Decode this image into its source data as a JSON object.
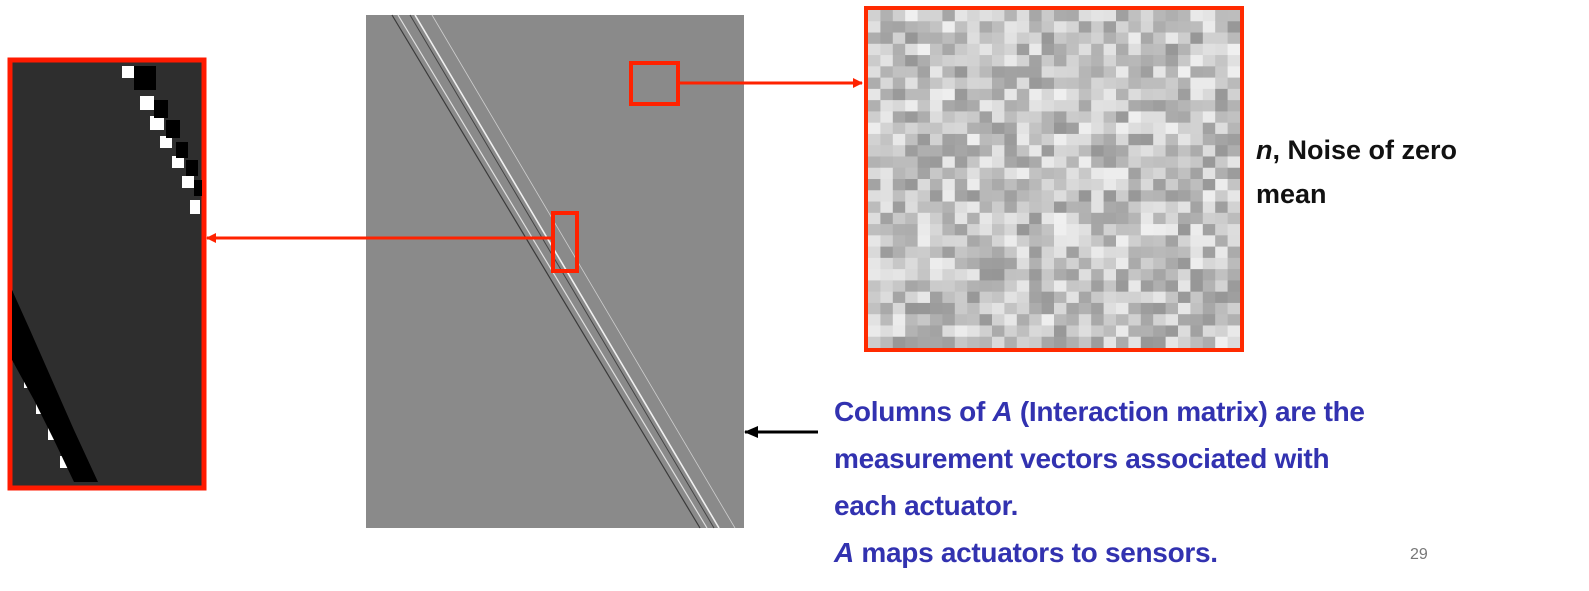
{
  "noise_label": [
    "n",
    ", Noise of zero",
    "mean"
  ],
  "caption": [
    [
      "Columns of ",
      "A",
      " (Interaction matrix) are the"
    ],
    [
      "measurement vectors associated with"
    ],
    [
      "each actuator."
    ],
    [
      "A",
      " maps actuators to sensors."
    ]
  ],
  "page_number": "29"
}
